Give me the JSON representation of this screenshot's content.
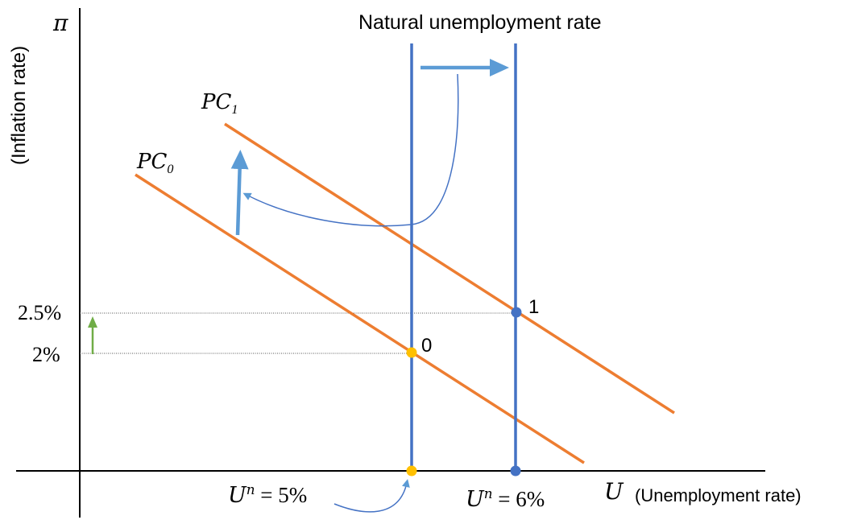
{
  "title": "Natural unemployment rate",
  "y_axis": {
    "symbol": "π",
    "label": "(Inflation rate)",
    "tick_high": "2.5%",
    "tick_low": "2%"
  },
  "x_axis": {
    "symbol": "U",
    "label": "(Unemployment rate)"
  },
  "curves": {
    "pc1": {
      "base": "PC",
      "sub": "1"
    },
    "pc0": {
      "base": "PC",
      "sub": "0"
    }
  },
  "points": {
    "p1": "1",
    "p0": "0"
  },
  "natural_rates": {
    "old": {
      "base": "U",
      "sup": "n",
      "rest": " = 5%"
    },
    "new": {
      "base": "U",
      "sup": "n",
      "rest": " = 6%"
    }
  },
  "colors": {
    "axis": "#000000",
    "vertical_line": "#4472c4",
    "phillips_curve": "#ed7d31",
    "shift_arrow": "#5b9bd5",
    "inflation_arrow": "#70ad47",
    "point_initial": "#ffc000",
    "point_new": "#4472c4"
  }
}
